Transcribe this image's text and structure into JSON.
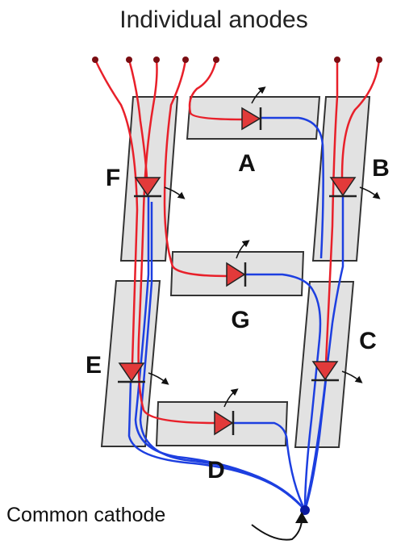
{
  "title": "Individual anodes",
  "cathode_label": "Common cathode",
  "segments": [
    {
      "id": "A",
      "label": "A"
    },
    {
      "id": "B",
      "label": "B"
    },
    {
      "id": "C",
      "label": "C"
    },
    {
      "id": "D",
      "label": "D"
    },
    {
      "id": "E",
      "label": "E"
    },
    {
      "id": "F",
      "label": "F"
    },
    {
      "id": "G",
      "label": "G"
    }
  ],
  "colors": {
    "anode_wire": "#e8202a",
    "cathode_wire": "#1d3fe0",
    "segment_fill": "#e2e2e2",
    "segment_stroke": "#333333",
    "led_fill": "#e23a3a",
    "terminal": "#7a0d12"
  },
  "icons": [
    "led-diode-icon",
    "light-emission-arrow-icon",
    "terminal-dot-icon"
  ]
}
